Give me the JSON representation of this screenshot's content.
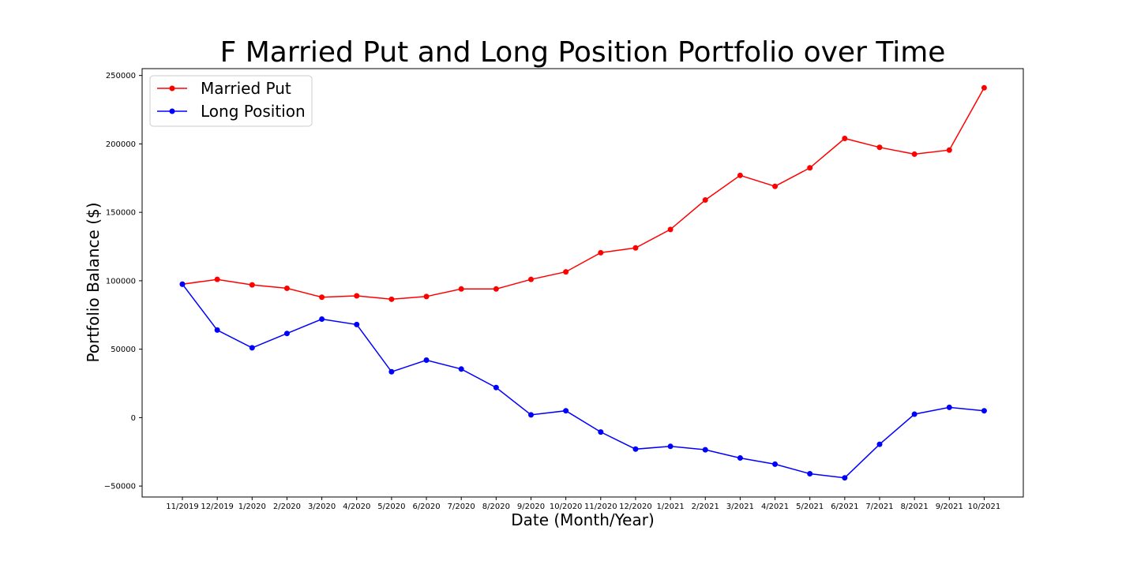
{
  "chart_data": {
    "type": "line",
    "title": "F Married Put and Long Position Portfolio over Time",
    "xlabel": "Date (Month/Year)",
    "ylabel": "Portfolio Balance ($)",
    "categories": [
      "11/2019",
      "12/2019",
      "1/2020",
      "2/2020",
      "3/2020",
      "4/2020",
      "5/2020",
      "6/2020",
      "7/2020",
      "8/2020",
      "9/2020",
      "10/2020",
      "11/2020",
      "12/2020",
      "1/2021",
      "2/2021",
      "3/2021",
      "4/2021",
      "5/2021",
      "6/2021",
      "7/2021",
      "8/2021",
      "9/2021",
      "10/2021"
    ],
    "yticks": [
      -50000,
      0,
      50000,
      100000,
      150000,
      200000,
      250000
    ],
    "ytick_labels": [
      "−50000",
      "0",
      "50000",
      "100000",
      "150000",
      "200000",
      "250000"
    ],
    "ylim": [
      -58000,
      255000
    ],
    "grid": false,
    "legend_position": "top-left",
    "series": [
      {
        "name": "Married Put",
        "color": "#ff0000",
        "values": [
          97500,
          101000,
          97000,
          94500,
          88000,
          89000,
          86500,
          88500,
          94000,
          94000,
          101000,
          106500,
          120500,
          124000,
          137500,
          159000,
          177000,
          169000,
          182500,
          204000,
          197500,
          192500,
          195500,
          241000
        ]
      },
      {
        "name": "Long Position",
        "color": "#0000ff",
        "values": [
          97500,
          64000,
          51000,
          61500,
          72000,
          68000,
          33500,
          42000,
          35500,
          22000,
          2000,
          5000,
          -10500,
          -23000,
          -21000,
          -23500,
          -29500,
          -34000,
          -41000,
          -44000,
          -19500,
          2500,
          7500,
          5000
        ]
      }
    ]
  }
}
